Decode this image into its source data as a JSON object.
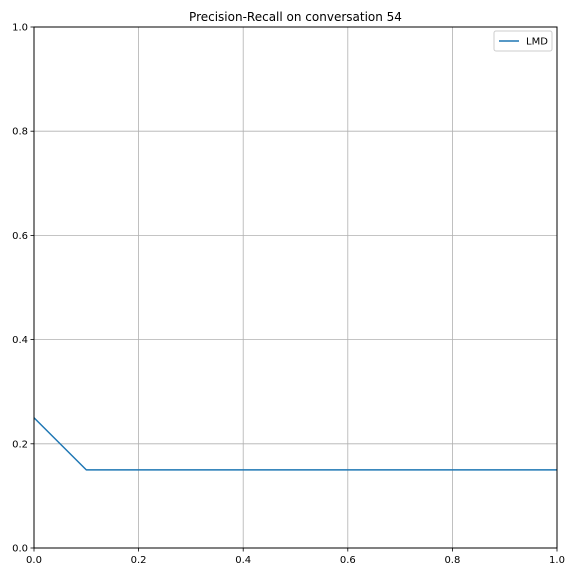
{
  "chart_data": {
    "type": "line",
    "title": "Precision-Recall on conversation 54",
    "xlabel": "",
    "ylabel": "",
    "xlim": [
      0,
      1
    ],
    "ylim": [
      0,
      1
    ],
    "grid": true,
    "legend_position": "top-right",
    "x_ticks": [
      "0.0",
      "0.2",
      "0.4",
      "0.6",
      "0.8",
      "1.0"
    ],
    "y_ticks": [
      "0.0",
      "0.2",
      "0.4",
      "0.6",
      "0.8",
      "1.0"
    ],
    "series": [
      {
        "name": "LMD",
        "color": "#1f77b4",
        "x": [
          0.0,
          0.1,
          0.2,
          0.3,
          0.4,
          0.5,
          0.6,
          0.7,
          0.8,
          0.9,
          1.0
        ],
        "y": [
          0.25,
          0.15,
          0.15,
          0.15,
          0.15,
          0.15,
          0.15,
          0.15,
          0.15,
          0.15,
          0.15
        ]
      }
    ]
  }
}
